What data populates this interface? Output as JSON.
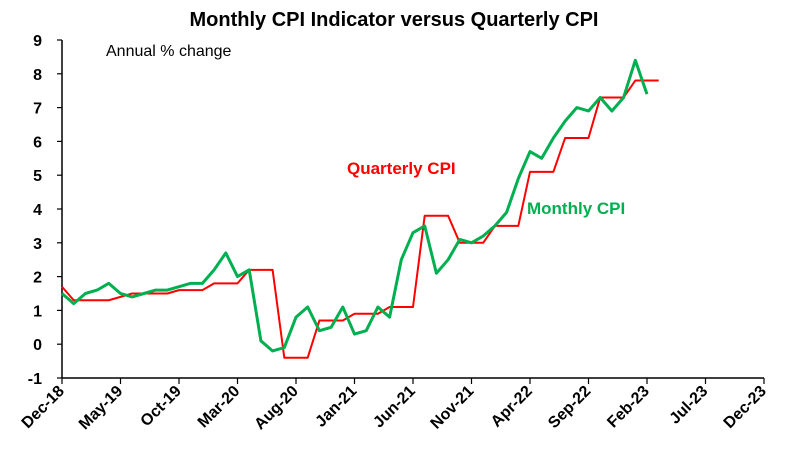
{
  "chart_data": {
    "type": "line",
    "title": "Monthly CPI Indicator versus Quarterly CPI",
    "subtitle": "Annual % change",
    "xlabel": "",
    "ylabel": "",
    "ylim": [
      -1,
      9
    ],
    "yticks": [
      "-1",
      "0",
      "1",
      "2",
      "3",
      "4",
      "5",
      "6",
      "7",
      "8",
      "9"
    ],
    "xticks": [
      "Dec-18",
      "May-19",
      "Oct-19",
      "Mar-20",
      "Aug-20",
      "Jan-21",
      "Jun-21",
      "Nov-21",
      "Apr-22",
      "Sep-22",
      "Feb-23",
      "Jul-23",
      "Dec-23"
    ],
    "grid": false,
    "colors": {
      "quarterly": "#ff0000",
      "monthly": "#00b050"
    },
    "series": [
      {
        "name": "Quarterly CPI",
        "color": "#ff0000",
        "points": [
          [
            "Dec-18",
            1.7
          ],
          [
            "Jan-19",
            1.3
          ],
          [
            "Mar-19",
            1.3
          ],
          [
            "Apr-19",
            1.3
          ],
          [
            "Jun-19",
            1.5
          ],
          [
            "Jul-19",
            1.5
          ],
          [
            "Sep-19",
            1.5
          ],
          [
            "Oct-19",
            1.6
          ],
          [
            "Dec-19",
            1.6
          ],
          [
            "Jan-20",
            1.8
          ],
          [
            "Mar-20",
            1.8
          ],
          [
            "Apr-20",
            2.2
          ],
          [
            "Jun-20",
            2.2
          ],
          [
            "Jul-20",
            -0.4
          ],
          [
            "Sep-20",
            -0.4
          ],
          [
            "Oct-20",
            0.7
          ],
          [
            "Dec-20",
            0.7
          ],
          [
            "Jan-21",
            0.9
          ],
          [
            "Mar-21",
            0.9
          ],
          [
            "Apr-21",
            1.1
          ],
          [
            "Jun-21",
            1.1
          ],
          [
            "Jul-21",
            3.8
          ],
          [
            "Sep-21",
            3.8
          ],
          [
            "Oct-21",
            3.0
          ],
          [
            "Dec-21",
            3.0
          ],
          [
            "Jan-22",
            3.5
          ],
          [
            "Mar-22",
            3.5
          ],
          [
            "Apr-22",
            5.1
          ],
          [
            "Jun-22",
            5.1
          ],
          [
            "Jul-22",
            6.1
          ],
          [
            "Sep-22",
            6.1
          ],
          [
            "Oct-22",
            7.3
          ],
          [
            "Dec-22",
            7.3
          ],
          [
            "Jan-23",
            7.8
          ],
          [
            "Mar-23",
            7.8
          ]
        ]
      },
      {
        "name": "Monthly CPI",
        "color": "#00b050",
        "points": [
          [
            "Dec-18",
            1.5
          ],
          [
            "Jan-19",
            1.2
          ],
          [
            "Feb-19",
            1.5
          ],
          [
            "Mar-19",
            1.6
          ],
          [
            "Apr-19",
            1.8
          ],
          [
            "May-19",
            1.5
          ],
          [
            "Jun-19",
            1.4
          ],
          [
            "Jul-19",
            1.5
          ],
          [
            "Aug-19",
            1.6
          ],
          [
            "Sep-19",
            1.6
          ],
          [
            "Oct-19",
            1.7
          ],
          [
            "Nov-19",
            1.8
          ],
          [
            "Dec-19",
            1.8
          ],
          [
            "Jan-20",
            2.2
          ],
          [
            "Feb-20",
            2.7
          ],
          [
            "Mar-20",
            2.0
          ],
          [
            "Apr-20",
            2.2
          ],
          [
            "May-20",
            0.1
          ],
          [
            "Jun-20",
            -0.2
          ],
          [
            "Jul-20",
            -0.1
          ],
          [
            "Aug-20",
            0.8
          ],
          [
            "Sep-20",
            1.1
          ],
          [
            "Oct-20",
            0.4
          ],
          [
            "Nov-20",
            0.5
          ],
          [
            "Dec-20",
            1.1
          ],
          [
            "Jan-21",
            0.3
          ],
          [
            "Feb-21",
            0.4
          ],
          [
            "Mar-21",
            1.1
          ],
          [
            "Apr-21",
            0.8
          ],
          [
            "May-21",
            2.5
          ],
          [
            "Jun-21",
            3.3
          ],
          [
            "Jul-21",
            3.5
          ],
          [
            "Aug-21",
            2.1
          ],
          [
            "Sep-21",
            2.5
          ],
          [
            "Oct-21",
            3.1
          ],
          [
            "Nov-21",
            3.0
          ],
          [
            "Dec-21",
            3.2
          ],
          [
            "Jan-22",
            3.5
          ],
          [
            "Feb-22",
            3.9
          ],
          [
            "Mar-22",
            4.9
          ],
          [
            "Apr-22",
            5.7
          ],
          [
            "May-22",
            5.5
          ],
          [
            "Jun-22",
            6.1
          ],
          [
            "Jul-22",
            6.6
          ],
          [
            "Aug-22",
            7.0
          ],
          [
            "Sep-22",
            6.9
          ],
          [
            "Oct-22",
            7.3
          ],
          [
            "Nov-22",
            6.9
          ],
          [
            "Dec-22",
            7.3
          ],
          [
            "Jan-23",
            8.4
          ],
          [
            "Feb-23",
            7.4
          ]
        ]
      }
    ]
  }
}
